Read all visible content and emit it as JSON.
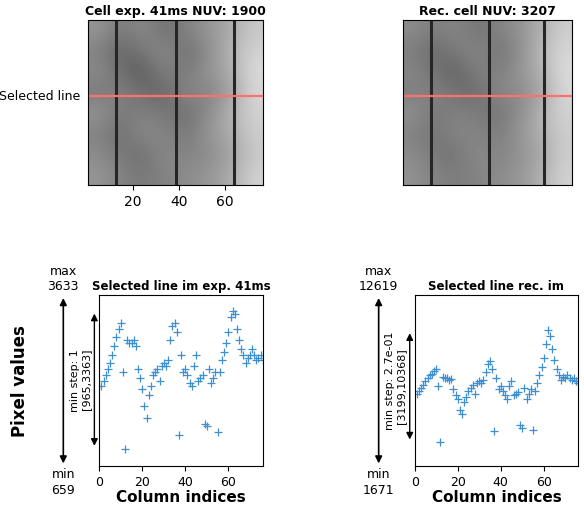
{
  "chart_data": [
    {
      "type": "image",
      "title": "Cell exp. 41ms NUV: 1900",
      "cells": [
        [
          150,
          120,
          140,
          110,
          130,
          150,
          170,
          200
        ],
        [
          130,
          100,
          120,
          140,
          110,
          140,
          180,
          210
        ],
        [
          140,
          110,
          90,
          130,
          120,
          150,
          170,
          220
        ],
        [
          120,
          130,
          110,
          100,
          140,
          130,
          160,
          215
        ],
        [
          150,
          120,
          130,
          120,
          110,
          140,
          180,
          210
        ],
        [
          130,
          110,
          140,
          130,
          120,
          150,
          170,
          205
        ],
        [
          140,
          120,
          110,
          140,
          130,
          140,
          160,
          200
        ],
        [
          150,
          130,
          120,
          130,
          140,
          150,
          170,
          210
        ]
      ],
      "clim": [
        0,
        255
      ],
      "xlim": [
        0.5,
        76.5
      ],
      "ylim": [
        66.5,
        0.5
      ],
      "xticks": [
        20,
        40,
        60
      ],
      "tick_labels": "x",
      "dark_columns": [
        13,
        39,
        64
      ],
      "selected_row": 31,
      "selected_row_label": "Selected line",
      "line_color": "#ff6f6f"
    },
    {
      "type": "image",
      "title": "Rec. cell NUV: 3207",
      "cells": [
        [
          140,
          125,
          135,
          115,
          130,
          145,
          175,
          205
        ],
        [
          125,
          105,
          125,
          135,
          115,
          140,
          185,
          215
        ],
        [
          135,
          115,
          95,
          130,
          125,
          150,
          175,
          220
        ],
        [
          125,
          130,
          115,
          105,
          140,
          135,
          165,
          215
        ],
        [
          145,
          120,
          130,
          125,
          115,
          140,
          180,
          210
        ],
        [
          130,
          115,
          135,
          130,
          125,
          150,
          175,
          205
        ],
        [
          140,
          120,
          115,
          140,
          130,
          145,
          165,
          205
        ],
        [
          145,
          130,
          125,
          130,
          140,
          150,
          175,
          210
        ]
      ],
      "clim": [
        0,
        255
      ],
      "xlim": [
        0.5,
        76.5
      ],
      "ylim": [
        66.5,
        0.5
      ],
      "xticks": [],
      "tick_labels": false,
      "dark_columns": [
        13,
        39,
        64
      ],
      "selected_row": 31,
      "line_color": "#ff6f6f"
    },
    {
      "type": "scatter",
      "title": "Selected line im exp. 41ms",
      "xlabel": "Column indices",
      "ylabel": "Pixel values",
      "x": [
        1,
        2,
        3,
        4,
        5,
        6,
        7,
        8,
        9,
        10,
        11,
        12,
        13,
        14,
        15,
        16,
        17,
        18,
        19,
        20,
        21,
        22,
        23,
        24,
        25,
        26,
        27,
        28,
        29,
        30,
        31,
        32,
        33,
        34,
        35,
        36,
        37,
        38,
        39,
        40,
        41,
        42,
        43,
        44,
        45,
        46,
        47,
        48,
        49,
        50,
        51,
        52,
        53,
        54,
        55,
        56,
        57,
        58,
        59,
        60,
        61,
        62,
        63,
        64,
        65,
        66,
        67,
        68,
        69,
        70,
        71,
        72,
        73,
        74,
        75,
        76
      ],
      "values": [
        2050,
        2150,
        2250,
        2350,
        2450,
        2600,
        2750,
        2900,
        3050,
        3150,
        2300,
        965,
        2850,
        2800,
        2800,
        2850,
        2750,
        2350,
        2200,
        2000,
        1700,
        1500,
        1900,
        2050,
        2250,
        2300,
        2350,
        2150,
        2400,
        2450,
        2400,
        2500,
        2850,
        3100,
        3150,
        3000,
        1200,
        2600,
        2300,
        2350,
        2250,
        2100,
        2050,
        2400,
        2600,
        2150,
        2200,
        2250,
        1400,
        1350,
        2350,
        2100,
        2200,
        2300,
        1250,
        2300,
        2500,
        2650,
        2800,
        3000,
        3250,
        3363,
        3300,
        3050,
        2850,
        2700,
        2600,
        2450,
        2550,
        2600,
        2700,
        2600,
        2500,
        2550,
        2600,
        2500
      ],
      "xlim": [
        0,
        76
      ],
      "xticks": [
        0,
        20,
        40,
        60
      ],
      "ylim": [
        659,
        3633
      ],
      "yticks": [],
      "tick_labels": "x",
      "color": "#3d8fd1",
      "marker": "+",
      "max_label": "max",
      "min_label": "min",
      "step_label": "min step: 1",
      "range": [
        965,
        3363
      ],
      "range_label": "[965,3363]"
    },
    {
      "type": "scatter",
      "title": "Selected line rec. im",
      "xlabel": "Column indices",
      "x": [
        1,
        2,
        3,
        4,
        5,
        6,
        7,
        8,
        9,
        10,
        11,
        12,
        13,
        14,
        15,
        16,
        17,
        18,
        19,
        20,
        21,
        22,
        23,
        24,
        25,
        26,
        27,
        28,
        29,
        30,
        31,
        32,
        33,
        34,
        35,
        36,
        37,
        38,
        39,
        40,
        41,
        42,
        43,
        44,
        45,
        46,
        47,
        48,
        49,
        50,
        51,
        52,
        53,
        54,
        55,
        56,
        57,
        58,
        59,
        60,
        61,
        62,
        63,
        64,
        65,
        66,
        67,
        68,
        69,
        70,
        71,
        72,
        73,
        74,
        75,
        76
      ],
      "values": [
        6300,
        6500,
        6700,
        6900,
        7100,
        7300,
        7500,
        7600,
        7800,
        7900,
        6800,
        3199,
        7400,
        7300,
        7300,
        7200,
        7250,
        6600,
        6200,
        6000,
        5300,
        5000,
        5800,
        6100,
        6500,
        6700,
        6900,
        6300,
        7000,
        7100,
        7000,
        7200,
        7700,
        8200,
        8400,
        7900,
        3900,
        7300,
        6600,
        6800,
        6500,
        6200,
        6000,
        6800,
        7100,
        6200,
        6300,
        6400,
        4300,
        4100,
        6700,
        6000,
        6300,
        6600,
        4000,
        6500,
        7000,
        7500,
        8000,
        8600,
        9500,
        10368,
        10000,
        9200,
        8500,
        7900,
        7500,
        7200,
        7400,
        7300,
        7500,
        7300,
        7200,
        7300,
        7100,
        7000
      ],
      "xlim": [
        0,
        76
      ],
      "xticks": [
        0,
        20,
        40,
        60
      ],
      "ylim": [
        1671,
        12619
      ],
      "yticks": [],
      "tick_labels": "x",
      "color": "#3d8fd1",
      "marker": "+",
      "max_label": "max",
      "min_label": "min",
      "step_label": "min step: 2.7e-01",
      "range": [
        3199,
        10368
      ],
      "range_label": "[3199,10368]"
    }
  ]
}
